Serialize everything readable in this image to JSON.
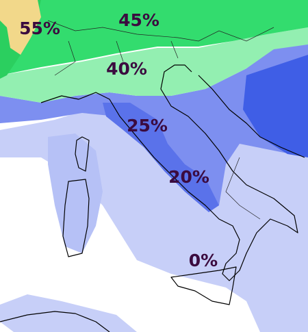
{
  "map": {
    "labels": [
      "55%",
      "45%",
      "40%",
      "25%",
      "20%",
      "0%"
    ]
  }
}
